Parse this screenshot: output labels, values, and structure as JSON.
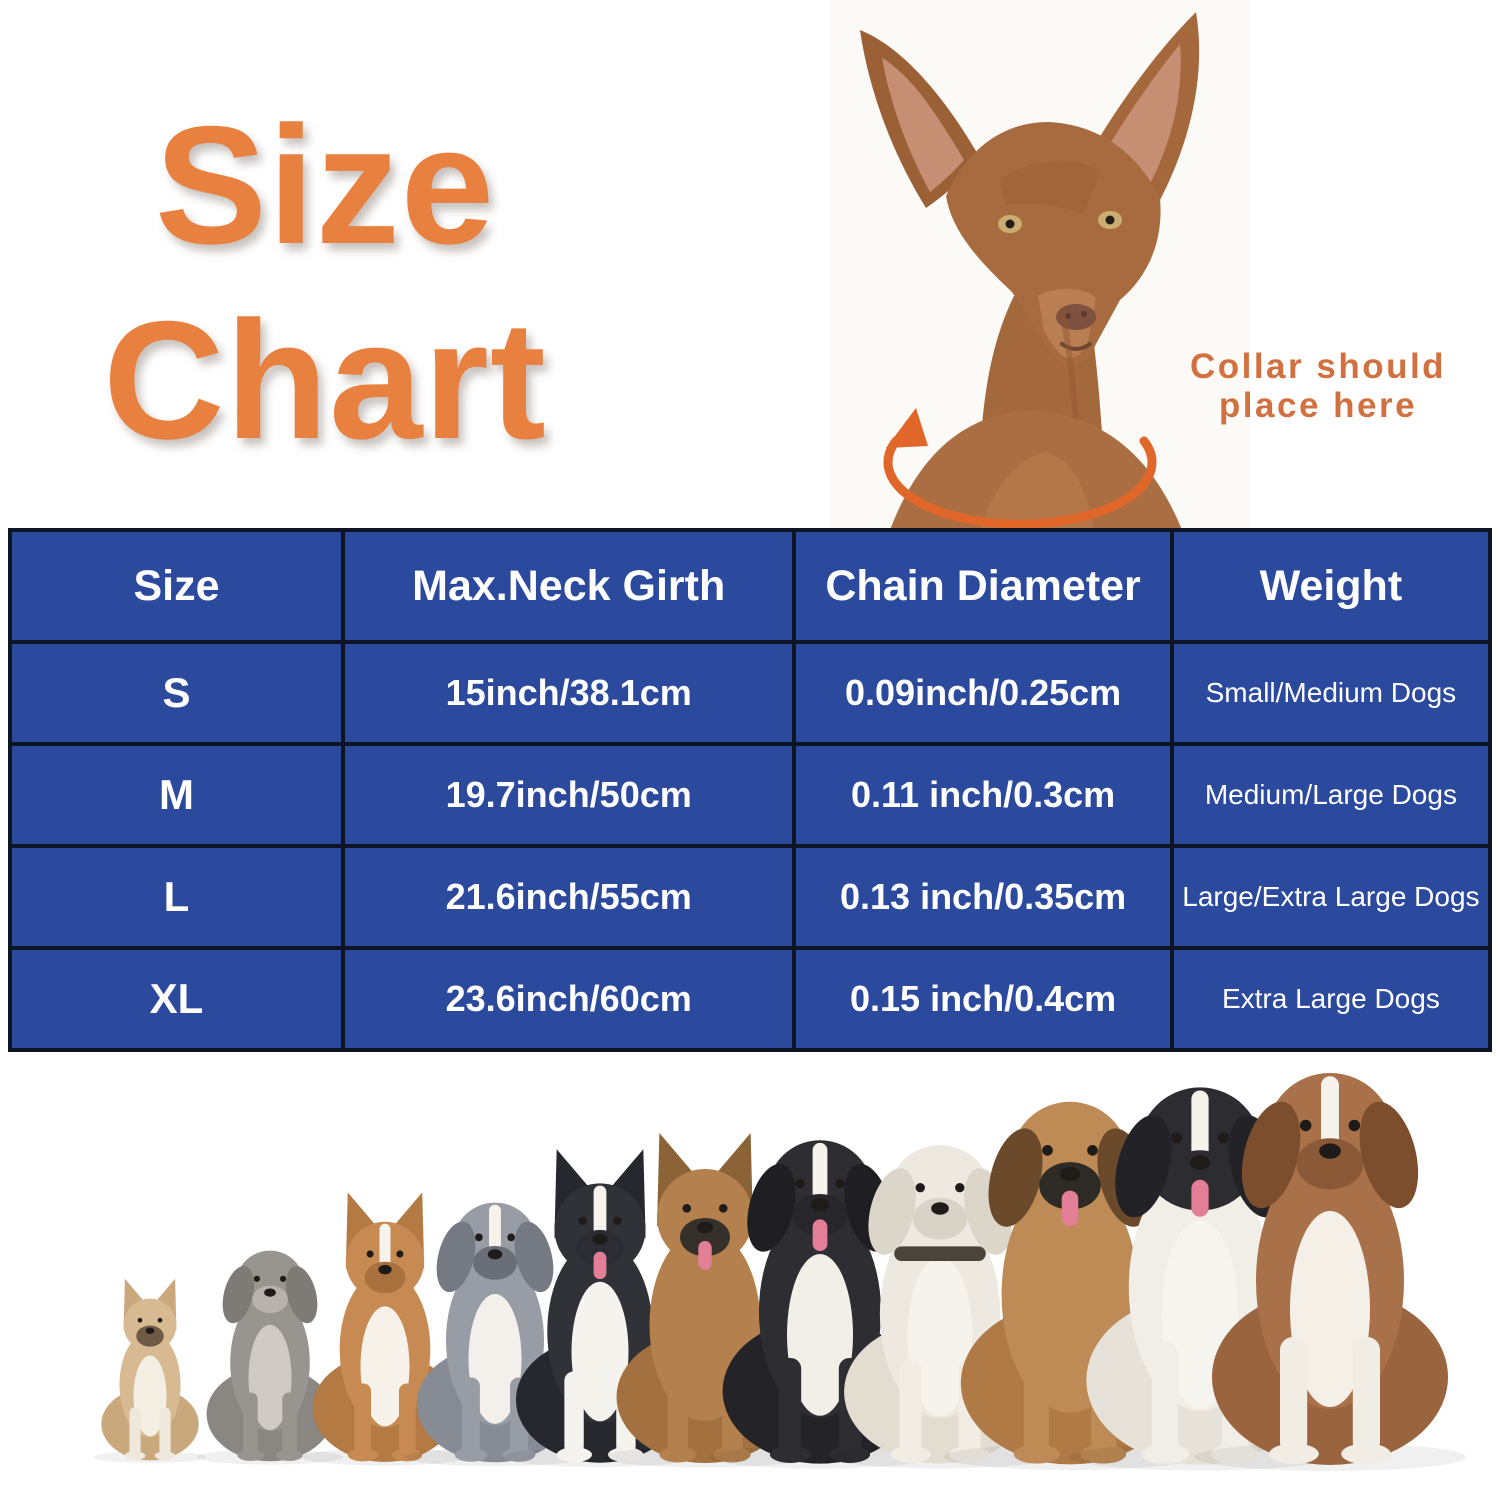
{
  "title": {
    "line1": "Size",
    "line2": "Chart"
  },
  "collar_note": {
    "line1": "Collar should",
    "line2": "place here"
  },
  "table": {
    "columns": [
      "Size",
      "Max.Neck Girth",
      "Chain Diameter",
      "Weight"
    ],
    "rows": [
      [
        "S",
        "15inch/38.1cm",
        "0.09inch/0.25cm",
        "Small/Medium Dogs"
      ],
      [
        "M",
        "19.7inch/50cm",
        "0.11 inch/0.3cm",
        "Medium/Large Dogs"
      ],
      [
        "L",
        "21.6inch/55cm",
        "0.13 inch/0.35cm",
        "Large/Extra Large Dogs"
      ],
      [
        "XL",
        "23.6inch/60cm",
        "0.15 inch/0.4cm",
        "Extra Large Dogs"
      ]
    ]
  },
  "chart_data": {
    "type": "table",
    "title": "Size Chart",
    "columns": [
      "Size",
      "Max.Neck Girth",
      "Chain Diameter",
      "Weight"
    ],
    "rows": [
      [
        "S",
        "15inch/38.1cm",
        "0.09inch/0.25cm",
        "Small/Medium Dogs"
      ],
      [
        "M",
        "19.7inch/50cm",
        "0.11 inch/0.3cm",
        "Medium/Large Dogs"
      ],
      [
        "L",
        "21.6inch/55cm",
        "0.13 inch/0.35cm",
        "Large/Extra Large Dogs"
      ],
      [
        "XL",
        "23.6inch/60cm",
        "0.15 inch/0.4cm",
        "Extra Large Dogs"
      ]
    ]
  },
  "colors": {
    "accent_orange": "#E8803F",
    "arrow_orange": "#E0662A",
    "table_blue": "#2C4A9D",
    "table_border": "#0D1424",
    "table_text": "#FFFFFF"
  },
  "icons": {
    "dog_photo": "pharaoh-hound-neck-measure-photo",
    "collar_arrow": "collar-placement-arrow",
    "dog_lineup": [
      "french-bulldog",
      "miniature-schnauzer",
      "shetland-sheepdog",
      "australian-shepherd",
      "border-collie",
      "belgian-malinois",
      "swiss-mountain-dog",
      "american-bulldog",
      "english-mastiff",
      "landseer-newfoundland",
      "saint-bernard"
    ]
  }
}
